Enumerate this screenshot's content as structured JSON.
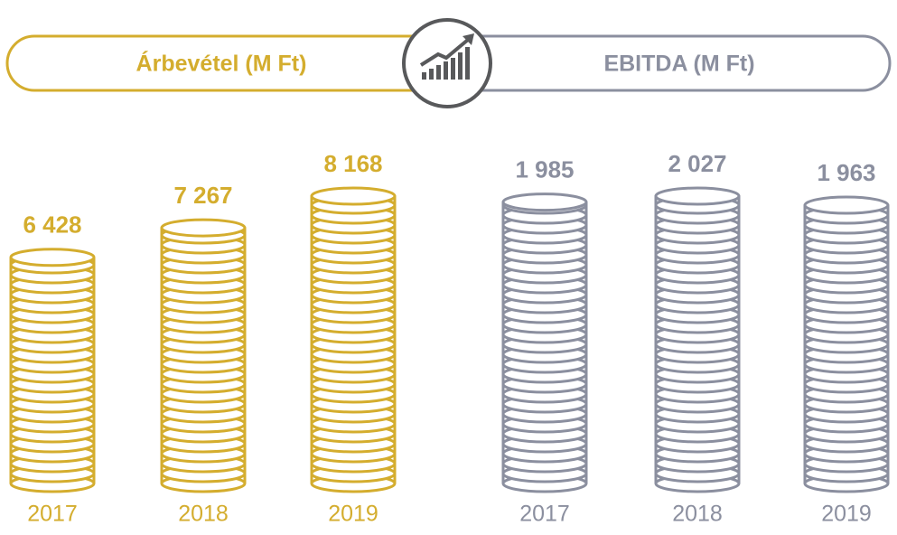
{
  "chart_data": [
    {
      "type": "bar",
      "title": "Árbevétel (M Ft)",
      "categories": [
        "2017",
        "2018",
        "2019"
      ],
      "values": [
        6428,
        7267,
        8168
      ],
      "value_labels": [
        "6 428",
        "7 267",
        "8 168"
      ],
      "color": "#d4ad2e"
    },
    {
      "type": "bar",
      "title": "EBITDA (M Ft)",
      "categories": [
        "2017",
        "2018",
        "2019"
      ],
      "values": [
        1985,
        2027,
        1963
      ],
      "value_labels": [
        "1 985",
        "2 027",
        "1 963"
      ],
      "color": "#8b8f9f"
    }
  ]
}
